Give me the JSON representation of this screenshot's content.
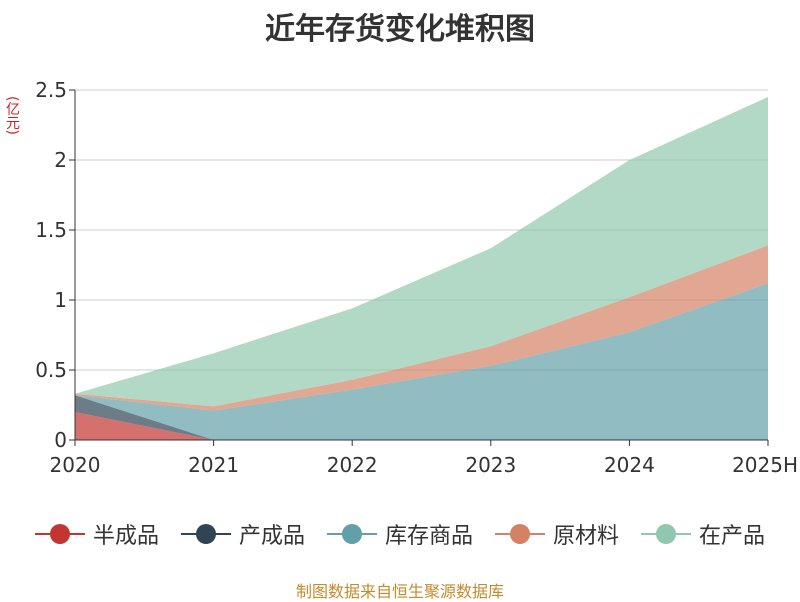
{
  "title": "近年存货变化堆积图",
  "unit_label": "(亿元)",
  "source": "制图数据来自恒生聚源数据库",
  "chart_data": {
    "type": "area",
    "stacked": true,
    "title": "近年存货变化堆积图",
    "ylabel": "(亿元)",
    "xlabel": "",
    "categories": [
      "2020",
      "2021",
      "2022",
      "2023",
      "2024",
      "2025H"
    ],
    "ylim": [
      0,
      2.5
    ],
    "yticks": [
      0,
      0.5,
      1,
      1.5,
      2,
      2.5
    ],
    "ytick_labels": [
      "0",
      "0.5",
      "1",
      "1.5",
      "2",
      "2.5"
    ],
    "grid": true,
    "legend_position": "bottom",
    "series": [
      {
        "name": "半成品",
        "color": "#c23531",
        "values": [
          0.2,
          0.0,
          0.0,
          0.0,
          0.0,
          0.0
        ]
      },
      {
        "name": "产成品",
        "color": "#2f4554",
        "values": [
          0.12,
          0.0,
          0.0,
          0.0,
          0.0,
          0.0
        ]
      },
      {
        "name": "库存商品",
        "color": "#61a0a8",
        "values": [
          0.0,
          0.21,
          0.36,
          0.53,
          0.77,
          1.12
        ]
      },
      {
        "name": "原材料",
        "color": "#d48265",
        "values": [
          0.01,
          0.03,
          0.07,
          0.14,
          0.25,
          0.27
        ]
      },
      {
        "name": "在产品",
        "color": "#91c7ae",
        "values": [
          0.0,
          0.38,
          0.51,
          0.7,
          0.98,
          1.06
        ]
      }
    ]
  }
}
